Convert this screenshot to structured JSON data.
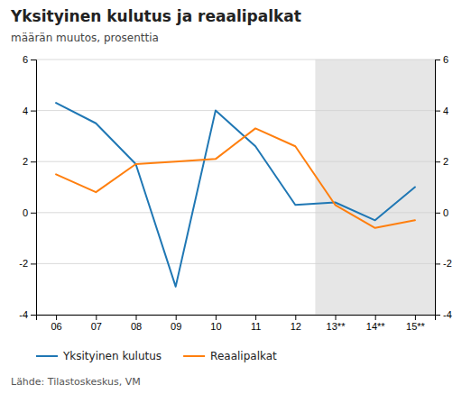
{
  "chart_data": {
    "type": "line",
    "title": "Yksityinen kulutus ja reaalipalkat",
    "subtitle": "määrän muutos, prosenttia",
    "annotations": [
      "Lähde: Tilastoskeskus, VM"
    ],
    "categories": [
      "06",
      "07",
      "08",
      "09",
      "10",
      "11",
      "12",
      "13**",
      "14**",
      "15**"
    ],
    "series": [
      {
        "name": "Yksityinen kulutus",
        "values": [
          4.3,
          3.5,
          1.9,
          -2.9,
          4.0,
          2.6,
          0.3,
          0.4,
          -0.3,
          1.0
        ]
      },
      {
        "name": "Reaalipalkat",
        "values": [
          1.5,
          0.8,
          1.9,
          2.0,
          2.1,
          3.3,
          2.6,
          0.3,
          -0.6,
          -0.3
        ]
      }
    ],
    "shaded_from": "13**",
    "ylim": [
      -4,
      6
    ],
    "yticks": [
      -4,
      -2,
      0,
      2,
      4,
      6
    ],
    "y2lim": [
      -4,
      6
    ],
    "y2ticks": [
      -4,
      -2,
      0,
      2,
      4,
      6
    ],
    "grid": true,
    "legend": "bottom-left"
  }
}
